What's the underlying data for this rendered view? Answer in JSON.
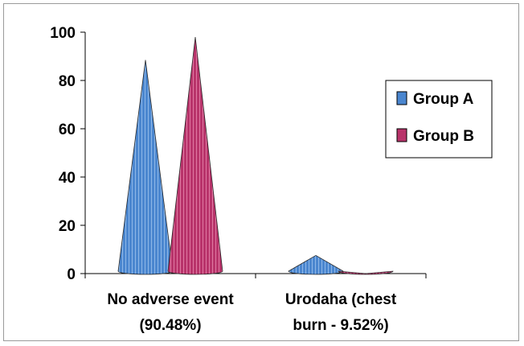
{
  "chart_data": {
    "type": "bar",
    "bar_shape": "cone",
    "categories": [
      "No adverse event (90.48%)",
      "Urodaha (chest burn - 9.52%)"
    ],
    "category_lines": [
      [
        "No adverse event",
        "(90.48%)"
      ],
      [
        "Urodaha (chest",
        "burn - 9.52%)"
      ]
    ],
    "series": [
      {
        "name": "Group A",
        "values": [
          90.48,
          9.52
        ],
        "color": "#4a86cf"
      },
      {
        "name": "Group B",
        "values": [
          100,
          2
        ],
        "color": "#b8336a"
      }
    ],
    "yticks": [
      0,
      20,
      40,
      60,
      80,
      100
    ],
    "ylim": [
      0,
      100
    ],
    "title": "",
    "xlabel": "",
    "ylabel": "",
    "legend": "right",
    "grid": false
  }
}
